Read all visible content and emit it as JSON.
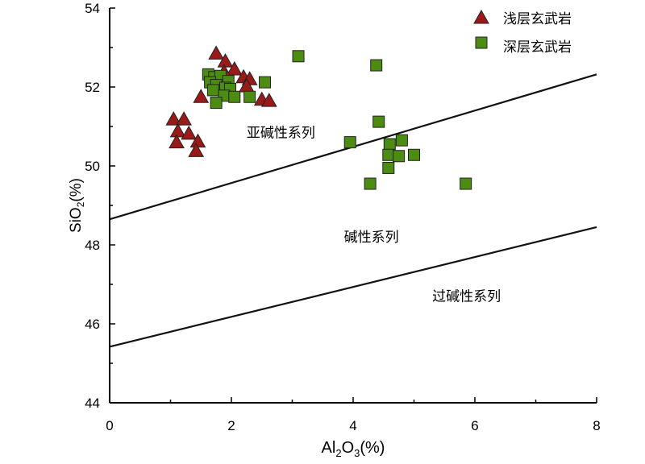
{
  "chart_data": {
    "type": "scatter",
    "title": "",
    "xlabel": "Al2O3(%)",
    "ylabel": "SiO2(%)",
    "xlim": [
      0,
      8
    ],
    "ylim": [
      44,
      54
    ],
    "x_ticks": [
      0,
      2,
      4,
      6,
      8
    ],
    "y_ticks": [
      44,
      46,
      48,
      50,
      52,
      54
    ],
    "grid": false,
    "legend_position": "top-right",
    "colors": {
      "shallow": "#9a1a1a",
      "deep": "#4d8c12",
      "marker_edge": "#222222",
      "boundary": "#111111"
    },
    "series": [
      {
        "name": "浅层玄武岩",
        "marker": "triangle",
        "points": [
          [
            1.75,
            52.85
          ],
          [
            1.9,
            52.65
          ],
          [
            2.05,
            52.45
          ],
          [
            1.88,
            52.38
          ],
          [
            2.2,
            52.25
          ],
          [
            2.3,
            52.2
          ],
          [
            2.25,
            52.02
          ],
          [
            1.5,
            51.75
          ],
          [
            2.5,
            51.68
          ],
          [
            2.62,
            51.65
          ],
          [
            1.05,
            51.18
          ],
          [
            1.22,
            51.18
          ],
          [
            1.12,
            50.88
          ],
          [
            1.3,
            50.82
          ],
          [
            1.45,
            50.62
          ],
          [
            1.1,
            50.6
          ],
          [
            1.42,
            50.38
          ]
        ]
      },
      {
        "name": "深层玄武岩",
        "marker": "square",
        "points": [
          [
            1.62,
            52.32
          ],
          [
            1.72,
            52.25
          ],
          [
            1.82,
            52.28
          ],
          [
            1.65,
            52.12
          ],
          [
            1.95,
            52.15
          ],
          [
            1.75,
            52.05
          ],
          [
            1.9,
            51.98
          ],
          [
            1.98,
            51.95
          ],
          [
            1.7,
            51.92
          ],
          [
            2.55,
            52.12
          ],
          [
            1.88,
            51.78
          ],
          [
            2.05,
            51.75
          ],
          [
            2.3,
            51.75
          ],
          [
            1.75,
            51.6
          ],
          [
            3.1,
            52.78
          ],
          [
            4.38,
            52.55
          ],
          [
            4.42,
            51.12
          ],
          [
            3.95,
            50.6
          ],
          [
            4.6,
            50.55
          ],
          [
            4.8,
            50.65
          ],
          [
            4.58,
            50.28
          ],
          [
            4.75,
            50.25
          ],
          [
            5.0,
            50.28
          ],
          [
            4.58,
            49.95
          ],
          [
            4.28,
            49.55
          ],
          [
            5.85,
            49.55
          ]
        ]
      }
    ],
    "boundary_lines": [
      {
        "from": [
          0,
          48.65
        ],
        "to": [
          8,
          52.32
        ]
      },
      {
        "from": [
          0,
          45.42
        ],
        "to": [
          8,
          48.45
        ]
      }
    ],
    "annotations": [
      {
        "text": "亚碱性系列",
        "at": [
          2.25,
          50.85
        ]
      },
      {
        "text": "碱性系列",
        "at": [
          3.85,
          48.2
        ]
      },
      {
        "text": "过碱性系列",
        "at": [
          5.3,
          46.7
        ]
      }
    ]
  }
}
